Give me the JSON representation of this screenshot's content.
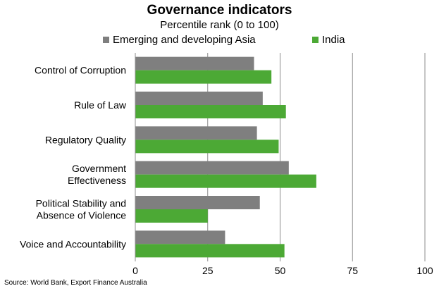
{
  "chart_data": {
    "type": "bar",
    "orientation": "horizontal",
    "title": "Governance indicators",
    "subtitle": "Percentile rank (0 to 100)",
    "categories": [
      "Control of Corruption",
      "Rule of Law",
      "Regulatory Quality",
      "Government Effectiveness",
      "Political Stability and Absence of Violence",
      "Voice and Accountability"
    ],
    "category_lines": [
      [
        "Control of Corruption"
      ],
      [
        "Rule of Law"
      ],
      [
        "Regulatory Quality"
      ],
      [
        "Government ",
        "Effectiveness"
      ],
      [
        "Political Stability and",
        "Absence of Violence"
      ],
      [
        "Voice and Accountability"
      ]
    ],
    "series": [
      {
        "name": "Emerging and developing Asia",
        "color": "#7f7f7f",
        "values": [
          41,
          44,
          42,
          53,
          43,
          31
        ]
      },
      {
        "name": "India",
        "color": "#4ca935",
        "values": [
          47,
          52,
          49.5,
          62.5,
          25,
          51.5
        ]
      }
    ],
    "xlim": [
      0,
      100
    ],
    "xticks": [
      0,
      25,
      50,
      75,
      100
    ],
    "grid": true,
    "legend": "top"
  },
  "source": "Source: World Bank, Export Finance Australia"
}
